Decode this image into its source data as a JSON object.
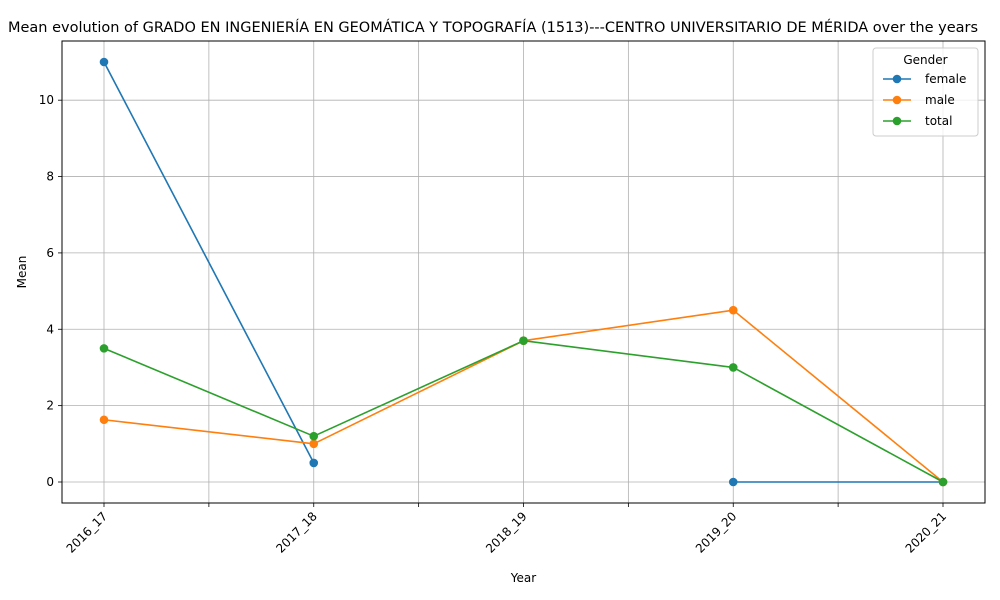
{
  "chart_data": {
    "type": "line",
    "title": "Mean evolution of GRADO EN INGENIERÍA EN GEOMÁTICA Y TOPOGRAFÍA (1513)---CENTRO UNIVERSITARIO DE MÉRIDA over the years",
    "xlabel": "Year",
    "ylabel": "Mean",
    "categories": [
      "2016_17",
      "2017_18",
      "2018_19",
      "2019_20",
      "2020_21"
    ],
    "ylim": [
      -0.55,
      11.55
    ],
    "yticks": [
      0,
      2,
      4,
      6,
      8,
      10
    ],
    "grid": true,
    "legend": {
      "title": "Gender",
      "position": "top-right"
    },
    "series": [
      {
        "name": "female",
        "color": "#1f77b4",
        "values": [
          11.0,
          0.5,
          null,
          0.0,
          0.0
        ]
      },
      {
        "name": "male",
        "color": "#ff7f0e",
        "values": [
          1.63,
          1.0,
          3.7,
          4.5,
          0.0
        ]
      },
      {
        "name": "total",
        "color": "#2ca02c",
        "values": [
          3.5,
          1.2,
          3.7,
          3.0,
          0.0
        ]
      }
    ]
  }
}
